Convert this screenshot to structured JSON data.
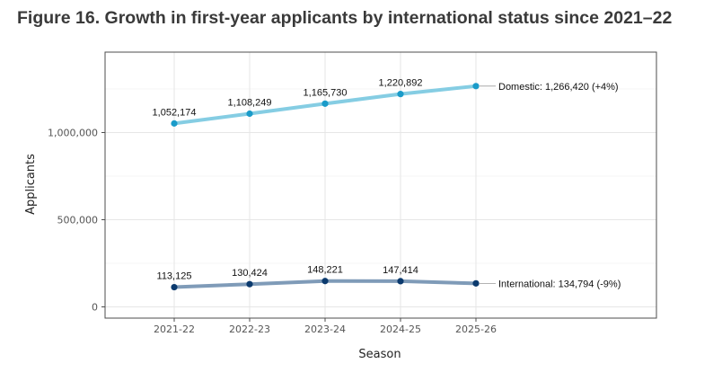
{
  "title": "Figure 16. Growth in first-year applicants by international status since 2021–22",
  "chart_data": {
    "type": "line",
    "title": "Figure 16. Growth in first-year applicants by international status since 2021–22",
    "xlabel": "Season",
    "ylabel": "Applicants",
    "categories": [
      "2021-22",
      "2022-23",
      "2023-24",
      "2024-25",
      "2025-26"
    ],
    "ylim": [
      -40000,
      1400000
    ],
    "yticks": [
      0,
      500000,
      1000000
    ],
    "ytick_labels": [
      "0",
      "500,000",
      "1,000,000"
    ],
    "grid": true,
    "series": [
      {
        "name": "Domestic",
        "values": [
          1052174,
          1108249,
          1165730,
          1220892,
          1266420
        ],
        "point_labels": [
          "1,052,174",
          "1,108,249",
          "1,165,730",
          "1,220,892"
        ],
        "end_label": "Domestic: 1,266,420 (+4%)",
        "line_color": "#85cde3",
        "point_color": "#1a9bc9"
      },
      {
        "name": "International",
        "values": [
          113125,
          130424,
          148221,
          147414,
          134794
        ],
        "point_labels": [
          "113,125",
          "130,424",
          "148,221",
          "147,414"
        ],
        "end_label": "International: 134,794 (-9%)",
        "line_color": "#7f9bb8",
        "point_color": "#0b3a6e"
      }
    ]
  }
}
